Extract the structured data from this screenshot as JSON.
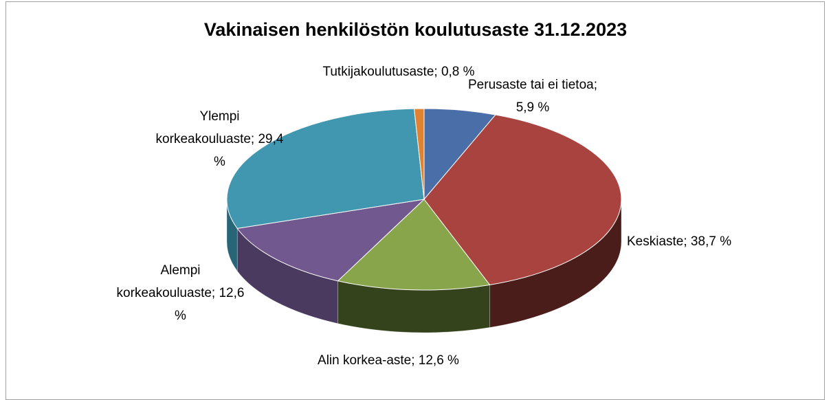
{
  "chart_data": {
    "type": "pie",
    "title": "Vakinaisen henkilöstön koulutusaste 31.12.2023",
    "values": [
      5.9,
      38.7,
      12.6,
      12.6,
      29.4,
      0.8
    ],
    "value_labels": [
      "Perusaste tai ei tietoa; 5,9 %",
      "Keskiaste; 38,7 %",
      "Alin korkea-aste; 12,6 %",
      "Alempi korkeakouluaste; 12,6 %",
      "Ylempi korkeakouluaste; 29,4 %",
      "Tutkijakoulutusaste; 0,8 %"
    ],
    "colors": [
      "#4a6fa8",
      "#a8433f",
      "#89a54c",
      "#71588f",
      "#4197b0",
      "#e0822f"
    ],
    "side_colors": [
      "#2e4a73",
      "#4a1c1a",
      "#34431c",
      "#4a3a60",
      "#276577",
      "#9a5418"
    ]
  }
}
